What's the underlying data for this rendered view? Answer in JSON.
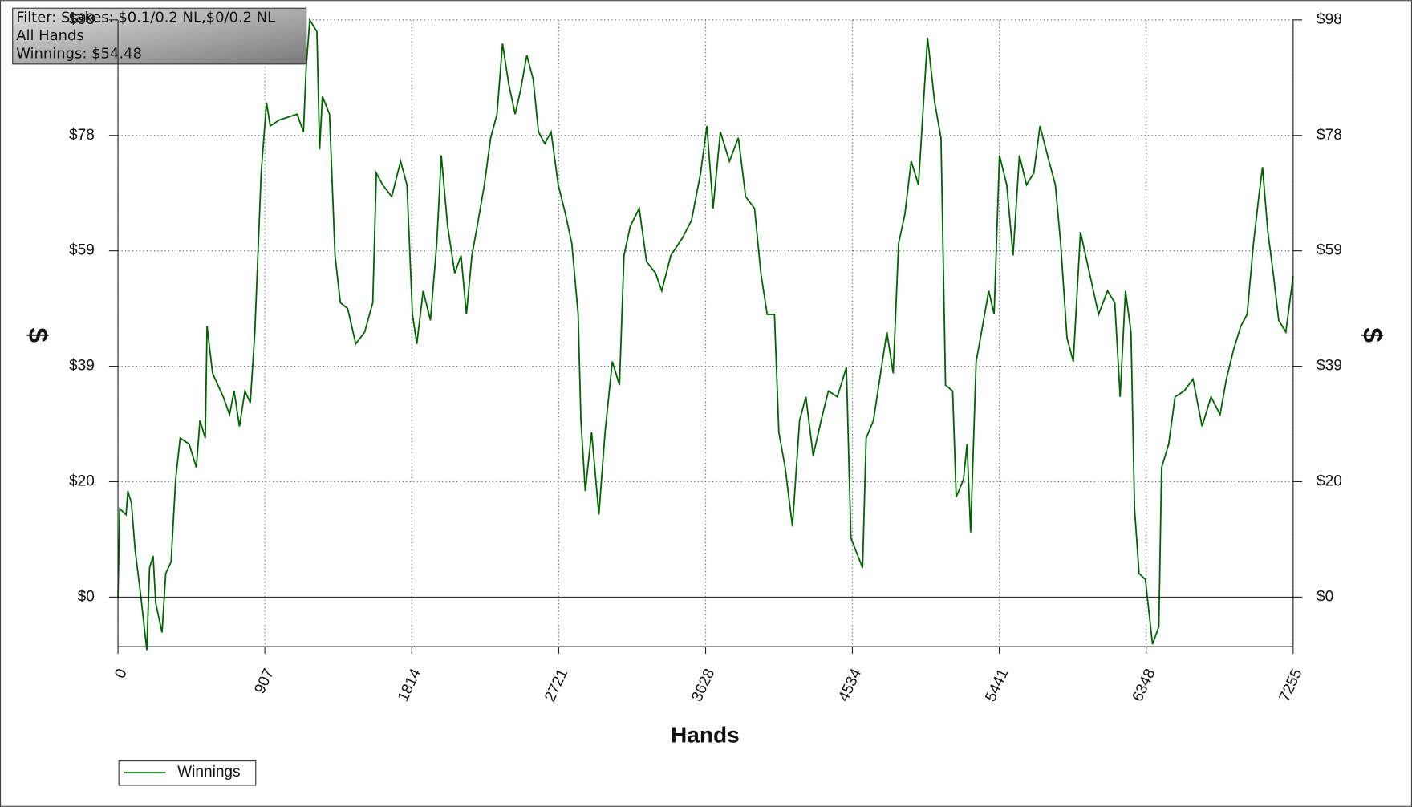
{
  "chart_data": {
    "type": "line",
    "annotations": [
      "Filter: Stakes: $0.1/0.2 NL,$0/0.2 NL",
      "All Hands",
      "Winnings: $54.48"
    ],
    "xlabel": "Hands",
    "ylabel": "$",
    "y2label": "$",
    "xlim": [
      0,
      7255
    ],
    "xticks": [
      0,
      907,
      1814,
      2721,
      3628,
      4534,
      5441,
      6348,
      7255
    ],
    "ylim": [
      -8.4,
      98
    ],
    "yticks": [
      {
        "value": 0,
        "label": "$0"
      },
      {
        "value": 19.6,
        "label": "$20"
      },
      {
        "value": 39.2,
        "label": "$39"
      },
      {
        "value": 58.8,
        "label": "$59"
      },
      {
        "value": 78.4,
        "label": "$78"
      },
      {
        "value": 98,
        "label": "$98"
      }
    ],
    "y2lim": [
      -8.4,
      98
    ],
    "y2ticks": [
      {
        "value": 0,
        "label": "$0"
      },
      {
        "value": 19.6,
        "label": "$20"
      },
      {
        "value": 39.2,
        "label": "$39"
      },
      {
        "value": 58.8,
        "label": "$59"
      },
      {
        "value": 78.4,
        "label": "$78"
      },
      {
        "value": 98,
        "label": "$98"
      }
    ],
    "grid": true,
    "legend": "bottom-left",
    "x": [
      0,
      11,
      50,
      61,
      83,
      106,
      133,
      150,
      178,
      195,
      217,
      233,
      272,
      295,
      328,
      356,
      384,
      439,
      484,
      506,
      539,
      550,
      584,
      617,
      650,
      689,
      717,
      750,
      784,
      817,
      845,
      884,
      917,
      940,
      995,
      1106,
      1145,
      1162,
      1184,
      1228,
      1245,
      1262,
      1306,
      1340,
      1373,
      1418,
      1468,
      1523,
      1573,
      1595,
      1634,
      1690,
      1745,
      1784,
      1818,
      1845,
      1884,
      1929,
      1968,
      1996,
      2035,
      2079,
      2118,
      2151,
      2185,
      2218,
      2262,
      2301,
      2340,
      2374,
      2413,
      2452,
      2485,
      2524,
      2563,
      2596,
      2635,
      2674,
      2718,
      2763,
      2802,
      2841,
      2858,
      2885,
      2924,
      2969,
      3007,
      3052,
      3096,
      3124,
      3163,
      3218,
      3263,
      3319,
      3357,
      3413,
      3485,
      3541,
      3597,
      3636,
      3674,
      3719,
      3775,
      3830,
      3875,
      3930,
      3969,
      4008,
      4053,
      4080,
      4119,
      4164,
      4208,
      4247,
      4292,
      4341,
      4386,
      4441,
      4497,
      4525,
      4597,
      4619,
      4664,
      4708,
      4747,
      4786,
      4819,
      4858,
      4897,
      4942,
      4998,
      5042,
      5081,
      5109,
      5153,
      5175,
      5220,
      5242,
      5264,
      5298,
      5331,
      5376,
      5409,
      5442,
      5487,
      5526,
      5565,
      5609,
      5654,
      5692,
      5748,
      5787,
      5820,
      5859,
      5898,
      5942,
      5998,
      6054,
      6109,
      6154,
      6187,
      6220,
      6254,
      6276,
      6304,
      6343,
      6387,
      6426,
      6443,
      6487,
      6526,
      6582,
      6637,
      6693,
      6748,
      6804,
      6843,
      6887,
      6932,
      6971,
      7010,
      7043,
      7066,
      7099,
      7132,
      7166,
      7210,
      7255
    ],
    "series": [
      {
        "name": "Winnings",
        "color": "#006400",
        "values": [
          0,
          15,
          14,
          18,
          16,
          8,
          2,
          -2,
          -9,
          5,
          7,
          -1,
          -6,
          4,
          6,
          20,
          27,
          26,
          22,
          30,
          27,
          46,
          38,
          36,
          34,
          31,
          35,
          29,
          35,
          33,
          45,
          72,
          84,
          80,
          81,
          82,
          79,
          90,
          98,
          96,
          76,
          85,
          82,
          58,
          50,
          49,
          43,
          45,
          50,
          72,
          70,
          68,
          74,
          70,
          48,
          43,
          52,
          47,
          60,
          75,
          63,
          55,
          58,
          48,
          58,
          63,
          70,
          78,
          82,
          94,
          87,
          82,
          86,
          92,
          88,
          79,
          77,
          79,
          70,
          65,
          60,
          48,
          30,
          18,
          28,
          14,
          28,
          40,
          36,
          58,
          63,
          66,
          57,
          55,
          52,
          58,
          61,
          64,
          72,
          80,
          66,
          79,
          74,
          78,
          68,
          66,
          55,
          48,
          48,
          28,
          22,
          12,
          30,
          34,
          24,
          30,
          35,
          34,
          39,
          10,
          5,
          27,
          30,
          38,
          45,
          38,
          60,
          65,
          74,
          70,
          95,
          84,
          78,
          36,
          35,
          17,
          20,
          26,
          11,
          40,
          45,
          52,
          48,
          75,
          70,
          58,
          75,
          70,
          72,
          80,
          74,
          70,
          60,
          44,
          40,
          62,
          55,
          48,
          52,
          50,
          34,
          52,
          45,
          15,
          4,
          3,
          -8,
          -5,
          22,
          26,
          34,
          35,
          37,
          29,
          34,
          31,
          37,
          42,
          46,
          48,
          60,
          68,
          73,
          62,
          55,
          47,
          45,
          54.48
        ]
      }
    ]
  }
}
